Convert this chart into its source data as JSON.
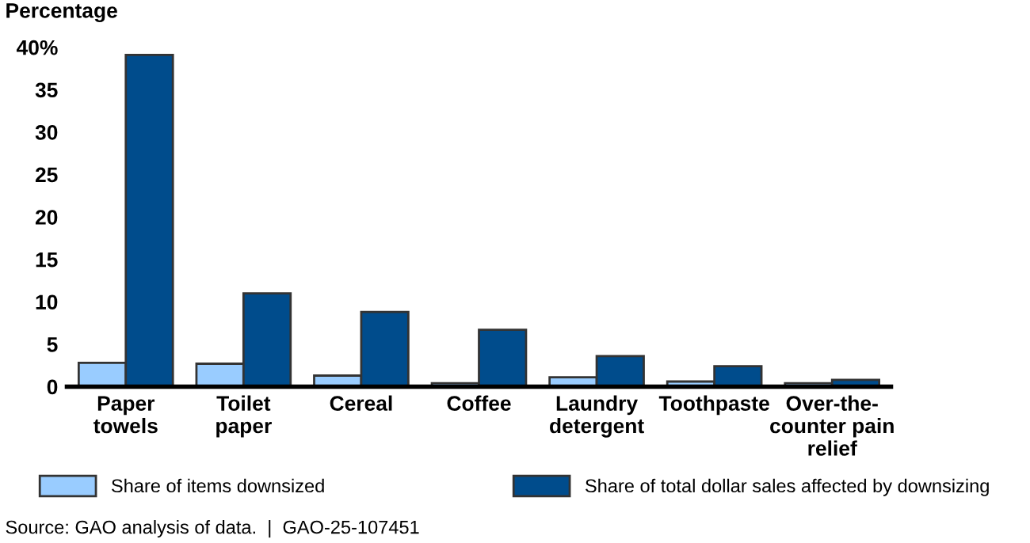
{
  "chart_data": {
    "type": "bar",
    "ylabel": "Percentage",
    "categories": [
      "Paper\ntowels",
      "Toilet\npaper",
      "Cereal",
      "Coffee",
      "Laundry\ndetergent",
      "Toothpaste",
      "Over-the-\ncounter pain\nrelief"
    ],
    "series": [
      {
        "name": "Share of items downsized",
        "color": "#99ccff",
        "values": [
          2.8,
          2.7,
          1.3,
          0.4,
          1.1,
          0.6,
          0.4
        ]
      },
      {
        "name": "Share of total dollar sales affected by downsizing",
        "color": "#004c8c",
        "values": [
          39.1,
          11.0,
          8.8,
          6.7,
          3.6,
          2.4,
          0.8
        ]
      }
    ],
    "ylim": [
      0,
      40
    ],
    "yticks": [
      0,
      5,
      10,
      15,
      20,
      25,
      30,
      35,
      {
        "value": 40,
        "label": "40%"
      }
    ],
    "grid": false,
    "legend": "bottom",
    "annotations": [
      "Source: GAO analysis of data.  |  GAO-25-107451"
    ]
  }
}
